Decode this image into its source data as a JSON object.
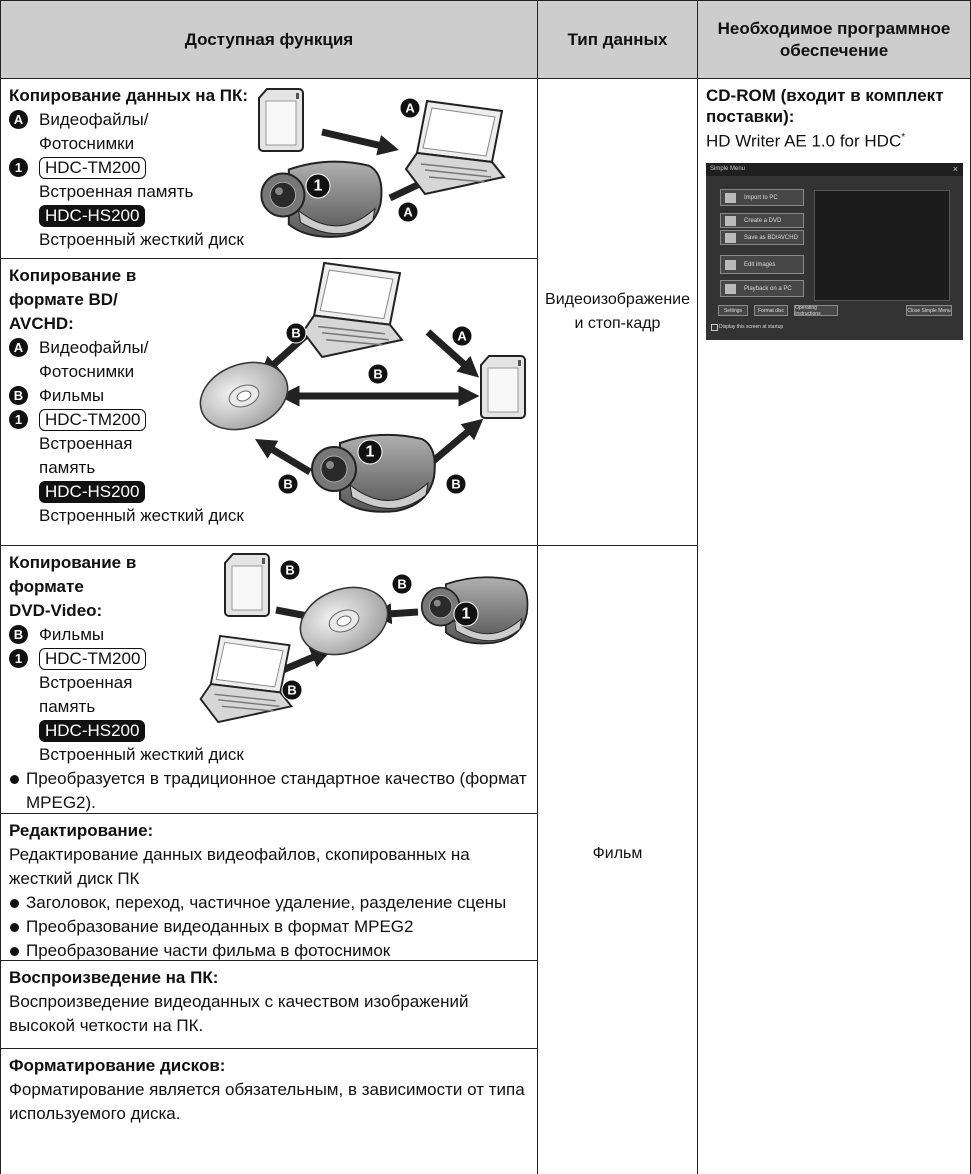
{
  "table": {
    "headers": [
      "Доступная функция",
      "Тип данных",
      "Необходимое программное обеспечение"
    ],
    "functions": [
      {
        "title": [
          "Копирование данных на ПК:"
        ],
        "items": [
          {
            "marker": "A",
            "lines": [
              "Видеофайлы/",
              "Фотоснимки"
            ]
          },
          {
            "marker": "1",
            "models": [
              {
                "model": "HDC-TM200",
                "lines": [
                  "Встроенная память"
                ]
              },
              {
                "model": "HDC-HS200",
                "lines": [
                  "Встроенный жесткий диск"
                ]
              }
            ]
          }
        ]
      },
      {
        "title": [
          "Копирование в",
          "формате BD/",
          "AVCHD:"
        ],
        "items": [
          {
            "marker": "A",
            "lines": [
              "Видеофайлы/",
              "Фотоснимки"
            ]
          },
          {
            "marker": "B",
            "lines": [
              "Фильмы"
            ]
          },
          {
            "marker": "1",
            "models": [
              {
                "model": "HDC-TM200",
                "lines": [
                  "Встроенная",
                  "память"
                ]
              },
              {
                "model": "HDC-HS200",
                "lines": [
                  "Встроенный жесткий диск"
                ]
              }
            ]
          }
        ]
      },
      {
        "title": [
          "Копирование в",
          "формате",
          "DVD-Video:"
        ],
        "items": [
          {
            "marker": "B",
            "lines": [
              "Фильмы"
            ]
          },
          {
            "marker": "1",
            "models": [
              {
                "model": "HDC-TM200",
                "lines": [
                  "Встроенная",
                  "память"
                ]
              },
              {
                "model": "HDC-HS200",
                "lines": [
                  "Встроенный жесткий диск"
                ]
              }
            ]
          }
        ],
        "bullets": [
          "Преобразуется в традиционное стандартное качество (формат MPEG2)."
        ]
      },
      {
        "title": [
          "Редактирование:"
        ],
        "text": "Редактирование данных видеофайлов, скопированных на жесткий диск ПК",
        "bullets": [
          "Заголовок, переход, частичное удаление, разделение сцены",
          "Преобразование видеоданных в формат MPEG2",
          "Преобразование части фильма в фотоснимок"
        ]
      },
      {
        "title": [
          "Воспроизведение на ПК:"
        ],
        "text": "Воспроизведение видеоданных с качеством изображений высокой четкости на ПК."
      },
      {
        "title": [
          "Форматирование дисков:"
        ],
        "text": "Форматирование является обязательным, в зависимости от типа используемого диска."
      }
    ],
    "data_types": [
      "Видеоизображение и стоп-кадр",
      "Фильм"
    ],
    "software": {
      "title": "CD-ROM (входит в комплект поставки):",
      "name": "HD Writer AE 1.0 for HDC",
      "note_mark": "*",
      "screenshot": {
        "title": "Simple Menu",
        "close_icon": "×",
        "buttons": [
          "Import to PC",
          "Create a DVD",
          "Save as BD/AVCHD",
          "Edit images",
          "Playback on a PC"
        ],
        "bottom_buttons": [
          "Settings",
          "Format disc",
          "Operating Instructions",
          "Close Simple Menu"
        ],
        "checkbox": "Display this screen at startup"
      }
    }
  }
}
